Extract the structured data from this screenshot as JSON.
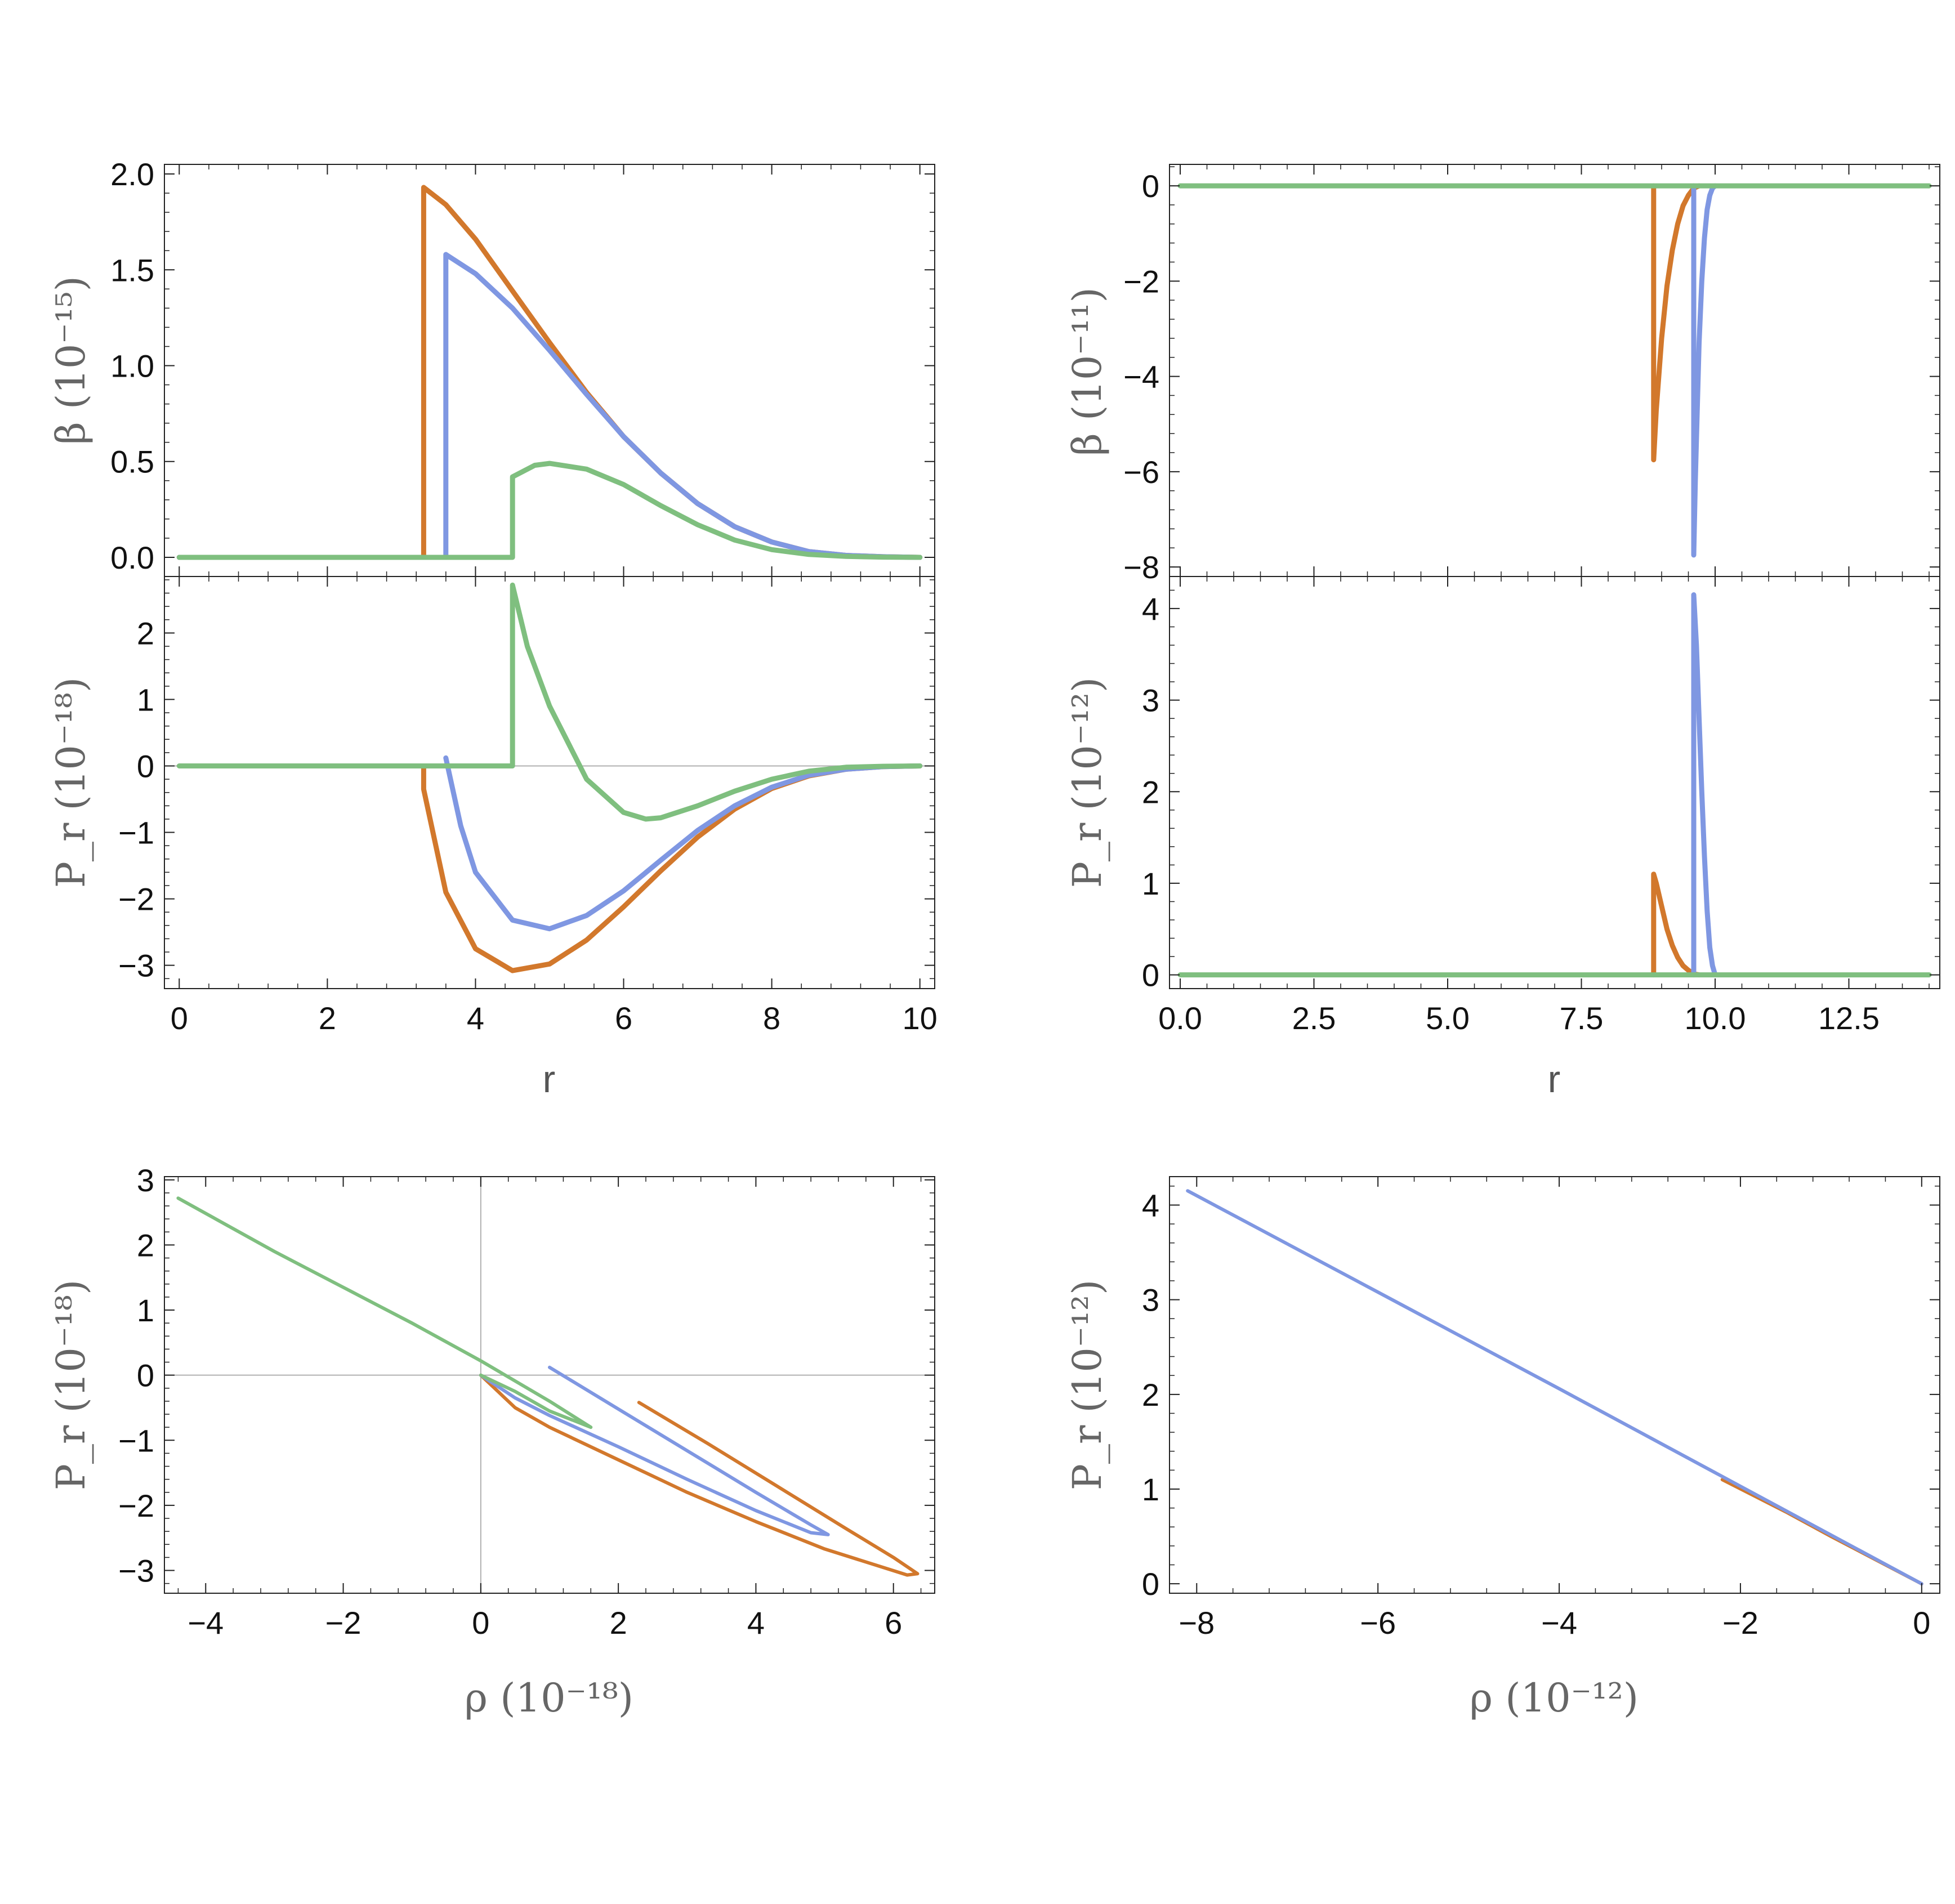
{
  "colors": {
    "orange": "#d2782c",
    "blue": "#7f97e2",
    "green": "#7fbf7f"
  },
  "chart_data": [
    {
      "id": "beta_left",
      "type": "line",
      "ylabel": "β (10⁻¹⁵)",
      "xlim": [
        -0.2,
        10.2
      ],
      "ylim": [
        -0.1,
        2.05
      ],
      "yticks": [
        0,
        0.5,
        1,
        1.5,
        2
      ],
      "yticklabels": [
        "0.0",
        "0.5",
        "1.0",
        "1.5",
        "2.0"
      ],
      "xticks": [
        0,
        2,
        4,
        6,
        8,
        10
      ],
      "series": [
        {
          "color": "orange",
          "x": [
            0,
            3.3,
            3.3,
            3.6,
            4.0,
            4.5,
            5.0,
            5.5,
            6.0,
            6.5,
            7.0,
            7.5,
            8.0,
            8.5,
            9.0,
            9.5,
            10.0
          ],
          "y": [
            0,
            0,
            1.93,
            1.84,
            1.66,
            1.39,
            1.12,
            0.86,
            0.63,
            0.44,
            0.28,
            0.16,
            0.08,
            0.03,
            0.01,
            0.003,
            0
          ]
        },
        {
          "color": "blue",
          "x": [
            0,
            3.6,
            3.6,
            4.0,
            4.5,
            5.0,
            5.5,
            6.0,
            6.5,
            7.0,
            7.5,
            8.0,
            8.5,
            9.0,
            9.5,
            10.0
          ],
          "y": [
            0,
            0,
            1.58,
            1.48,
            1.3,
            1.08,
            0.85,
            0.63,
            0.44,
            0.28,
            0.16,
            0.08,
            0.03,
            0.01,
            0.003,
            0
          ]
        },
        {
          "color": "green",
          "x": [
            0,
            4.5,
            4.5,
            4.8,
            5.0,
            5.5,
            6.0,
            6.5,
            7.0,
            7.5,
            8.0,
            8.5,
            9.0,
            9.5,
            10.0
          ],
          "y": [
            0,
            0,
            0.42,
            0.48,
            0.49,
            0.46,
            0.38,
            0.27,
            0.17,
            0.09,
            0.04,
            0.015,
            0.005,
            0.001,
            0
          ]
        }
      ]
    },
    {
      "id": "pr_left",
      "type": "line",
      "ylabel": "P_r (10⁻¹⁸)",
      "xlabel": "r",
      "xlim": [
        -0.2,
        10.2
      ],
      "ylim": [
        -3.35,
        2.85
      ],
      "yticks": [
        -3,
        -2,
        -1,
        0,
        1,
        2
      ],
      "yticklabels": [
        "−3",
        "−2",
        "−1",
        "0",
        "1",
        "2"
      ],
      "xticks": [
        0,
        2,
        4,
        6,
        8,
        10
      ],
      "xticklabels": [
        "0",
        "2",
        "4",
        "6",
        "8",
        "10"
      ],
      "series": [
        {
          "color": "orange",
          "x": [
            3.3,
            3.3,
            3.6,
            4.0,
            4.5,
            5.0,
            5.5,
            6.0,
            6.5,
            7.0,
            7.5,
            8.0,
            8.5,
            9.0,
            9.5,
            10.0
          ],
          "y": [
            0,
            -0.35,
            -1.9,
            -2.75,
            -3.08,
            -2.98,
            -2.62,
            -2.12,
            -1.58,
            -1.07,
            -0.65,
            -0.34,
            -0.15,
            -0.05,
            -0.01,
            0
          ]
        },
        {
          "color": "blue",
          "x": [
            3.6,
            3.8,
            4.0,
            4.5,
            5.0,
            5.5,
            6.0,
            6.5,
            7.0,
            7.5,
            8.0,
            8.5,
            9.0,
            9.5,
            10.0
          ],
          "y": [
            0.12,
            -0.9,
            -1.6,
            -2.32,
            -2.45,
            -2.25,
            -1.88,
            -1.42,
            -0.97,
            -0.6,
            -0.32,
            -0.14,
            -0.05,
            -0.01,
            0
          ]
        },
        {
          "color": "green",
          "x": [
            0,
            4.5,
            4.5,
            4.7,
            5.0,
            5.5,
            6.0,
            6.3,
            6.5,
            7.0,
            7.5,
            8.0,
            8.5,
            9.0,
            9.5,
            10.0
          ],
          "y": [
            0,
            0,
            2.72,
            1.8,
            0.9,
            -0.2,
            -0.7,
            -0.8,
            -0.78,
            -0.6,
            -0.38,
            -0.2,
            -0.08,
            -0.02,
            -0.005,
            0
          ]
        }
      ]
    },
    {
      "id": "beta_right",
      "type": "line",
      "ylabel": "β (10⁻¹¹)",
      "xlim": [
        -0.2,
        14.2
      ],
      "ylim": [
        -8.2,
        0.45
      ],
      "yticks": [
        -8,
        -6,
        -4,
        -2,
        0
      ],
      "yticklabels": [
        "−8",
        "−6",
        "−4",
        "−2",
        "0"
      ],
      "xticks": [
        0,
        2.5,
        5,
        7.5,
        10,
        12.5
      ],
      "series": [
        {
          "color": "orange",
          "x": [
            8.85,
            8.85,
            8.9,
            9.0,
            9.1,
            9.2,
            9.3,
            9.4,
            9.5,
            9.6,
            9.7
          ],
          "y": [
            0,
            -5.75,
            -4.7,
            -3.2,
            -2.1,
            -1.35,
            -0.8,
            -0.42,
            -0.2,
            -0.05,
            0
          ]
        },
        {
          "color": "blue",
          "x": [
            9.6,
            9.6,
            9.63,
            9.67,
            9.7,
            9.75,
            9.8,
            9.85,
            9.9,
            9.95,
            10.0
          ],
          "y": [
            0,
            -7.75,
            -6.2,
            -4.5,
            -3.3,
            -2.0,
            -1.1,
            -0.5,
            -0.2,
            -0.05,
            0
          ]
        },
        {
          "color": "green",
          "x": [
            0,
            14
          ],
          "y": [
            0,
            0
          ]
        }
      ]
    },
    {
      "id": "pr_right",
      "type": "line",
      "ylabel": "P_r (10⁻¹²)",
      "xlabel": "r",
      "xlim": [
        -0.2,
        14.2
      ],
      "ylim": [
        -0.15,
        4.35
      ],
      "yticks": [
        0,
        1,
        2,
        3,
        4
      ],
      "yticklabels": [
        "0",
        "1",
        "2",
        "3",
        "4"
      ],
      "xticks": [
        0,
        2.5,
        5,
        7.5,
        10,
        12.5
      ],
      "xticklabels": [
        "0.0",
        "2.5",
        "5.0",
        "7.5",
        "10.0",
        "12.5"
      ],
      "series": [
        {
          "color": "orange",
          "x": [
            8.85,
            8.85,
            8.9,
            9.0,
            9.1,
            9.2,
            9.3,
            9.4,
            9.5,
            9.6,
            9.7
          ],
          "y": [
            0,
            1.1,
            1.0,
            0.75,
            0.5,
            0.32,
            0.19,
            0.1,
            0.05,
            0.01,
            0
          ]
        },
        {
          "color": "blue",
          "x": [
            9.6,
            9.6,
            9.65,
            9.7,
            9.75,
            9.8,
            9.85,
            9.9,
            9.95,
            10.0
          ],
          "y": [
            0,
            4.15,
            3.6,
            2.8,
            2.0,
            1.3,
            0.7,
            0.3,
            0.1,
            0
          ]
        },
        {
          "color": "green",
          "x": [
            0,
            14
          ],
          "y": [
            0,
            0
          ]
        }
      ]
    },
    {
      "id": "pr_rho_left",
      "type": "line",
      "ylabel": "P_r (10⁻¹⁸)",
      "xlabel": "ρ  (10⁻¹⁸)",
      "xlim": [
        -4.6,
        6.6
      ],
      "ylim": [
        -3.35,
        3.05
      ],
      "yticks": [
        -3,
        -2,
        -1,
        0,
        1,
        2,
        3
      ],
      "yticklabels": [
        "−3",
        "−2",
        "−1",
        "0",
        "1",
        "2",
        "3"
      ],
      "xticks": [
        -4,
        -2,
        0,
        2,
        4,
        6
      ],
      "xticklabels": [
        "−4",
        "−2",
        "0",
        "2",
        "4",
        "6"
      ],
      "series": [
        {
          "color": "orange",
          "x": [
            2.3,
            3.3,
            4.3,
            5.3,
            6.0,
            6.35,
            6.2,
            5.0,
            4.0,
            3.0,
            2.0,
            1.0,
            0.5,
            0
          ],
          "y": [
            -0.42,
            -1.05,
            -1.7,
            -2.35,
            -2.8,
            -3.05,
            -3.07,
            -2.67,
            -2.25,
            -1.8,
            -1.3,
            -0.8,
            -0.5,
            0
          ]
        },
        {
          "color": "blue",
          "x": [
            1.0,
            2.0,
            3.0,
            4.0,
            4.8,
            5.05,
            4.8,
            4.0,
            3.0,
            2.0,
            1.0,
            0.5,
            0
          ],
          "y": [
            0.12,
            -0.52,
            -1.16,
            -1.8,
            -2.3,
            -2.45,
            -2.42,
            -2.08,
            -1.6,
            -1.1,
            -0.62,
            -0.35,
            0
          ]
        },
        {
          "color": "green",
          "x": [
            -4.4,
            -3.0,
            -2.0,
            -1.0,
            0,
            1.0,
            1.6,
            1.0,
            0.5,
            0
          ],
          "y": [
            2.72,
            1.9,
            1.35,
            0.8,
            0.22,
            -0.4,
            -0.8,
            -0.55,
            -0.25,
            0
          ]
        }
      ]
    },
    {
      "id": "pr_rho_right",
      "type": "line",
      "ylabel": "P_r (10⁻¹²)",
      "xlabel": "ρ (10⁻¹²)",
      "xlim": [
        -8.3,
        0.2
      ],
      "ylim": [
        -0.1,
        4.3
      ],
      "yticks": [
        0,
        1,
        2,
        3,
        4
      ],
      "yticklabels": [
        "0",
        "1",
        "2",
        "3",
        "4"
      ],
      "xticks": [
        -8,
        -6,
        -4,
        -2,
        0
      ],
      "xticklabels": [
        "−8",
        "−6",
        "−4",
        "−2",
        "0"
      ],
      "series": [
        {
          "color": "orange",
          "x": [
            -2.2,
            -1.5,
            -1.0,
            -0.5,
            0
          ],
          "y": [
            1.1,
            0.76,
            0.5,
            0.25,
            0
          ]
        },
        {
          "color": "blue",
          "x": [
            -8.1,
            -6.0,
            -4.0,
            -2.0,
            0
          ],
          "y": [
            4.15,
            3.08,
            2.06,
            1.03,
            0
          ]
        }
      ]
    }
  ]
}
